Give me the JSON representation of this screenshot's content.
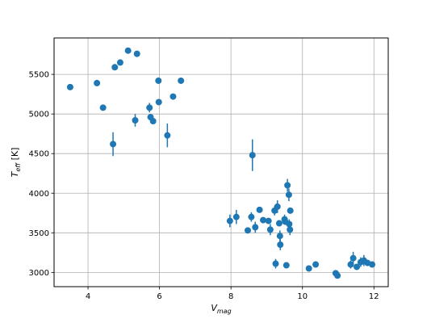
{
  "chart_data": {
    "type": "scatter",
    "xlabel": {
      "main": "V",
      "sub": "mag"
    },
    "ylabel": {
      "main": "T",
      "sub": "eff",
      "suffix": " [K]"
    },
    "xlim": [
      3.05,
      12.4
    ],
    "ylim": [
      2820,
      5960
    ],
    "xticks": [
      4,
      6,
      8,
      10,
      12
    ],
    "yticks": [
      3000,
      3500,
      4000,
      4500,
      5000,
      5500
    ],
    "grid": true,
    "marker_color": "#1f77b4",
    "grid_color": "#b0b0b0",
    "points": [
      {
        "x": 3.5,
        "y": 5340,
        "yerr": 0
      },
      {
        "x": 4.25,
        "y": 5390,
        "yerr": 0
      },
      {
        "x": 4.42,
        "y": 5080,
        "yerr": 0
      },
      {
        "x": 4.7,
        "y": 4620,
        "yerr": 150
      },
      {
        "x": 4.75,
        "y": 5590,
        "yerr": 0
      },
      {
        "x": 4.9,
        "y": 5650,
        "yerr": 0
      },
      {
        "x": 5.12,
        "y": 5800,
        "yerr": 0
      },
      {
        "x": 5.32,
        "y": 4920,
        "yerr": 80
      },
      {
        "x": 5.37,
        "y": 5760,
        "yerr": 0
      },
      {
        "x": 5.72,
        "y": 5080,
        "yerr": 60
      },
      {
        "x": 5.75,
        "y": 4960,
        "yerr": 0
      },
      {
        "x": 5.82,
        "y": 4910,
        "yerr": 0
      },
      {
        "x": 5.97,
        "y": 5420,
        "yerr": 0
      },
      {
        "x": 5.98,
        "y": 5150,
        "yerr": 0
      },
      {
        "x": 6.22,
        "y": 4730,
        "yerr": 150
      },
      {
        "x": 6.38,
        "y": 5220,
        "yerr": 0
      },
      {
        "x": 6.6,
        "y": 5420,
        "yerr": 0
      },
      {
        "x": 7.97,
        "y": 3650,
        "yerr": 80
      },
      {
        "x": 8.15,
        "y": 3700,
        "yerr": 90
      },
      {
        "x": 8.47,
        "y": 3530,
        "yerr": 0
      },
      {
        "x": 8.57,
        "y": 3700,
        "yerr": 60
      },
      {
        "x": 8.6,
        "y": 4480,
        "yerr": 200
      },
      {
        "x": 8.68,
        "y": 3570,
        "yerr": 70
      },
      {
        "x": 8.8,
        "y": 3790,
        "yerr": 0
      },
      {
        "x": 8.9,
        "y": 3660,
        "yerr": 0
      },
      {
        "x": 9.05,
        "y": 3650,
        "yerr": 0
      },
      {
        "x": 9.1,
        "y": 3540,
        "yerr": 70
      },
      {
        "x": 9.22,
        "y": 3780,
        "yerr": 60
      },
      {
        "x": 9.25,
        "y": 3110,
        "yerr": 60
      },
      {
        "x": 9.3,
        "y": 3830,
        "yerr": 80
      },
      {
        "x": 9.35,
        "y": 3620,
        "yerr": 0
      },
      {
        "x": 9.37,
        "y": 3460,
        "yerr": 70
      },
      {
        "x": 9.38,
        "y": 3350,
        "yerr": 70
      },
      {
        "x": 9.5,
        "y": 3670,
        "yerr": 60
      },
      {
        "x": 9.52,
        "y": 3640,
        "yerr": 0
      },
      {
        "x": 9.55,
        "y": 3090,
        "yerr": 0
      },
      {
        "x": 9.58,
        "y": 4100,
        "yerr": 80
      },
      {
        "x": 9.62,
        "y": 3980,
        "yerr": 80
      },
      {
        "x": 9.63,
        "y": 3610,
        "yerr": 60
      },
      {
        "x": 9.65,
        "y": 3540,
        "yerr": 70
      },
      {
        "x": 9.66,
        "y": 3780,
        "yerr": 0
      },
      {
        "x": 10.18,
        "y": 3050,
        "yerr": 0
      },
      {
        "x": 10.37,
        "y": 3100,
        "yerr": 0
      },
      {
        "x": 10.93,
        "y": 2990,
        "yerr": 0
      },
      {
        "x": 10.98,
        "y": 2960,
        "yerr": 0
      },
      {
        "x": 11.35,
        "y": 3100,
        "yerr": 50
      },
      {
        "x": 11.42,
        "y": 3180,
        "yerr": 80
      },
      {
        "x": 11.52,
        "y": 3070,
        "yerr": 0
      },
      {
        "x": 11.63,
        "y": 3130,
        "yerr": 60
      },
      {
        "x": 11.68,
        "y": 3140,
        "yerr": 0
      },
      {
        "x": 11.72,
        "y": 3150,
        "yerr": 70
      },
      {
        "x": 11.82,
        "y": 3120,
        "yerr": 0
      },
      {
        "x": 11.95,
        "y": 3100,
        "yerr": 0
      }
    ]
  }
}
